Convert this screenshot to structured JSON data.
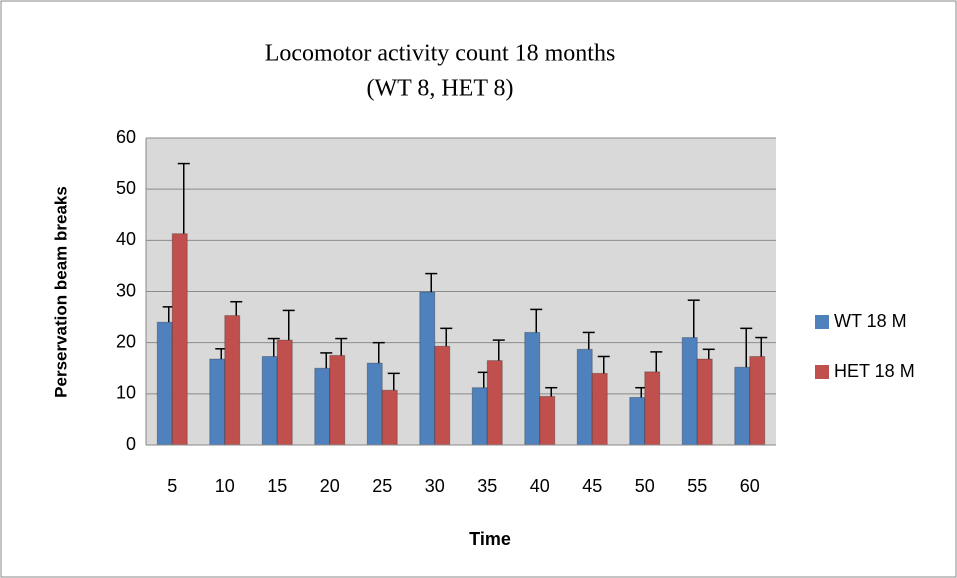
{
  "chart_data": {
    "type": "bar",
    "title": "Locomotor activity count 18 months",
    "subtitle": "(WT 8, HET 8)",
    "y_label": "Perservation beam breaks",
    "x_label": "Time",
    "categories": [
      "5",
      "10",
      "15",
      "20",
      "25",
      "30",
      "35",
      "40",
      "45",
      "50",
      "55",
      "60"
    ],
    "series": [
      {
        "name": "WT 18 M",
        "color": "#4f81bd",
        "values": [
          24,
          16.8,
          17.3,
          15,
          16,
          29.9,
          11.2,
          22,
          18.7,
          9.3,
          21,
          15.2
        ],
        "errors": [
          3,
          2,
          3.5,
          3,
          4,
          3.6,
          3,
          4.5,
          3.3,
          1.9,
          7.3,
          7.6
        ]
      },
      {
        "name": "HET 18 M",
        "color": "#c0504d",
        "values": [
          41.3,
          25.3,
          20.5,
          17.5,
          10.7,
          19.3,
          16.5,
          9.5,
          14,
          14.3,
          16.8,
          17.3
        ],
        "errors": [
          13.7,
          2.7,
          5.8,
          3.3,
          3.3,
          3.5,
          4,
          1.7,
          3.3,
          3.9,
          1.9,
          3.7
        ]
      }
    ],
    "ylim": [
      0,
      60
    ],
    "yticks": [
      0,
      10,
      20,
      30,
      40,
      50,
      60
    ],
    "grid": true,
    "legend": "right"
  }
}
